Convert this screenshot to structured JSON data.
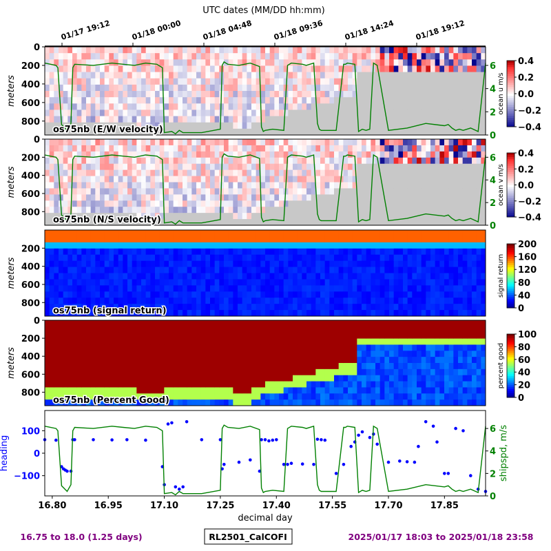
{
  "header": {
    "top_axis_title": "UTC dates (MM/DD hh:mm)",
    "date_ticks": [
      "01/17 19:12",
      "01/18 00:00",
      "01/18 04:48",
      "01/18 09:36",
      "01/18 14:24",
      "01/18 19:12"
    ]
  },
  "footer": {
    "left": "16.75 to 18.0 (1.25 days)",
    "center": "RL2501_CalCOFI",
    "right": "2025/01/17 18:03 to 2025/01/18 23:58",
    "left_color": "#800080",
    "right_color": "#800080"
  },
  "colors": {
    "shipspd": "#008000",
    "heading": "#0000ff",
    "nodata": "#c8c8c8"
  },
  "chart_data": [
    {
      "type": "heatmap",
      "label": "os75nb (E/W velocity)",
      "ylabel": "meters",
      "yticks": [
        "0",
        "200",
        "400",
        "600",
        "800"
      ],
      "ylim": [
        950,
        0
      ],
      "colorbar_label": "ocean u m/s",
      "colorbar_ticks": [
        "0.4",
        "0.2",
        "0.0",
        "−0.2",
        "−0.4"
      ],
      "colorbar_range": [
        -0.4,
        0.4
      ],
      "colormap": "seismic",
      "right_axis_ticks": [
        "6",
        "4",
        "2",
        "0"
      ]
    },
    {
      "type": "heatmap",
      "label": "os75nb (N/S velocity)",
      "ylabel": "meters",
      "yticks": [
        "0",
        "200",
        "400",
        "600",
        "800"
      ],
      "ylim": [
        950,
        0
      ],
      "colorbar_label": "ocean v m/s",
      "colorbar_ticks": [
        "0.4",
        "0.2",
        "0.0",
        "−0.2",
        "−0.4"
      ],
      "colorbar_range": [
        -0.4,
        0.4
      ],
      "colormap": "seismic",
      "right_axis_ticks": [
        "6",
        "4",
        "2",
        "0"
      ]
    },
    {
      "type": "heatmap",
      "label": "os75nb (signal return)",
      "ylabel": "meters",
      "yticks": [
        "200",
        "400",
        "600",
        "800"
      ],
      "ylim": [
        950,
        0
      ],
      "colorbar_label": "signal return",
      "colorbar_ticks": [
        "200",
        "160",
        "120",
        "80",
        "40",
        "0"
      ],
      "colorbar_range": [
        0,
        200
      ],
      "colormap": "jet"
    },
    {
      "type": "heatmap",
      "label": "os75nb (Percent Good)",
      "ylabel": "meters",
      "yticks": [
        "0",
        "200",
        "400",
        "600",
        "800"
      ],
      "ylim": [
        950,
        0
      ],
      "colorbar_label": "percent good",
      "colorbar_ticks": [
        "100",
        "80",
        "60",
        "40",
        "20",
        "0"
      ],
      "colorbar_range": [
        0,
        100
      ],
      "colormap": "jet"
    },
    {
      "type": "line",
      "xlabel": "decimal day",
      "xticks": [
        "16.80",
        "16.95",
        "17.10",
        "17.25",
        "17.40",
        "17.55",
        "17.70",
        "17.85"
      ],
      "xlim": [
        16.78,
        17.96
      ],
      "ylabel": "heading",
      "yticks": [
        "100",
        "0",
        "−100"
      ],
      "ylim": [
        -190,
        190
      ],
      "y2label": "shipspd, m/s",
      "y2ticks": [
        "6",
        "4",
        "2",
        "0"
      ],
      "y2lim": [
        0,
        7.6
      ],
      "series": [
        {
          "name": "shipspd, m/s",
          "x": [
            16.78,
            16.81,
            16.815,
            16.825,
            16.84,
            16.85,
            16.855,
            16.86,
            16.91,
            16.96,
            16.99,
            17.02,
            17.05,
            17.08,
            17.095,
            17.1,
            17.12,
            17.13,
            17.14,
            17.15,
            17.2,
            17.25,
            17.255,
            17.26,
            17.27,
            17.3,
            17.33,
            17.355,
            17.36,
            17.365,
            17.37,
            17.39,
            17.42,
            17.43,
            17.44,
            17.47,
            17.48,
            17.5,
            17.51,
            17.515,
            17.52,
            17.53,
            17.56,
            17.58,
            17.585,
            17.59,
            17.61,
            17.62,
            17.63,
            17.64,
            17.65,
            17.66,
            17.67,
            17.7,
            17.75,
            17.8,
            17.85,
            17.86,
            17.87,
            17.88,
            17.89,
            17.9,
            17.92,
            17.94,
            17.96
          ],
          "values": [
            6.2,
            6.0,
            5.8,
            0.9,
            0.4,
            1.0,
            5.8,
            6.1,
            6.0,
            6.2,
            6.1,
            6.0,
            6.2,
            6.1,
            5.8,
            0.2,
            0.3,
            0.1,
            0.4,
            0.2,
            0.2,
            0.5,
            6.0,
            6.3,
            6.1,
            6.0,
            6.2,
            5.9,
            0.7,
            0.3,
            0.4,
            0.5,
            0.4,
            6.0,
            6.2,
            6.1,
            6.0,
            6.2,
            1.0,
            0.5,
            0.4,
            0.4,
            0.4,
            6.1,
            6.1,
            6.2,
            6.1,
            0.3,
            0.5,
            0.4,
            0.5,
            6.2,
            6.0,
            0.4,
            0.6,
            1.0,
            0.8,
            0.9,
            0.6,
            0.4,
            0.5,
            0.4,
            0.6,
            0.3,
            6.2
          ]
        },
        {
          "name": "heading",
          "x": [
            16.78,
            16.81,
            16.825,
            16.83,
            16.835,
            16.84,
            16.85,
            16.855,
            16.86,
            16.91,
            16.96,
            17.0,
            17.05,
            17.095,
            17.1,
            17.11,
            17.12,
            17.13,
            17.14,
            17.15,
            17.16,
            17.2,
            17.25,
            17.255,
            17.26,
            17.3,
            17.33,
            17.355,
            17.36,
            17.37,
            17.38,
            17.39,
            17.4,
            17.42,
            17.43,
            17.44,
            17.47,
            17.5,
            17.51,
            17.52,
            17.53,
            17.56,
            17.58,
            17.6,
            17.61,
            17.62,
            17.63,
            17.65,
            17.66,
            17.67,
            17.7,
            17.73,
            17.75,
            17.77,
            17.78,
            17.8,
            17.82,
            17.83,
            17.85,
            17.86,
            17.88,
            17.9,
            17.92,
            17.94,
            17.96
          ],
          "values": [
            60,
            58,
            -60,
            -70,
            -75,
            -80,
            -80,
            60,
            60,
            60,
            59,
            60,
            58,
            -60,
            -140,
            130,
            135,
            -150,
            -160,
            -150,
            140,
            60,
            60,
            -70,
            -50,
            -40,
            -30,
            -80,
            60,
            60,
            55,
            58,
            60,
            -50,
            -50,
            -45,
            -48,
            -50,
            62,
            60,
            58,
            -90,
            -50,
            30,
            50,
            80,
            95,
            70,
            85,
            40,
            -40,
            -35,
            -38,
            -40,
            30,
            140,
            120,
            50,
            -90,
            -90,
            110,
            100,
            -100,
            -160,
            -170
          ]
        }
      ]
    }
  ]
}
